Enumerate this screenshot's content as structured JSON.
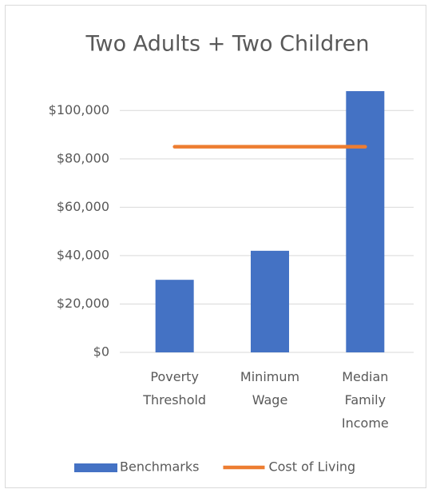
{
  "chart_data": {
    "type": "bar",
    "title": "Two Adults + Two Children",
    "categories": [
      "Poverty Threshold",
      "Minimum Wage",
      "Median Family Income"
    ],
    "series": [
      {
        "name": "Benchmarks",
        "type": "bar",
        "color": "#4472c4",
        "values": [
          30000,
          42000,
          108000
        ]
      },
      {
        "name": "Cost of Living",
        "type": "line",
        "color": "#ed7d31",
        "values": [
          85000,
          85000,
          85000
        ]
      }
    ],
    "ylim": [
      0,
      110000
    ],
    "yticks": [
      {
        "value": 0,
        "label": "$0"
      },
      {
        "value": 20000,
        "label": "$20,000"
      },
      {
        "value": 40000,
        "label": "$40,000"
      },
      {
        "value": 60000,
        "label": "$60,000"
      },
      {
        "value": 80000,
        "label": "$80,000"
      },
      {
        "value": 100000,
        "label": "$100,000"
      }
    ],
    "grid": true,
    "legend": "bottom"
  }
}
